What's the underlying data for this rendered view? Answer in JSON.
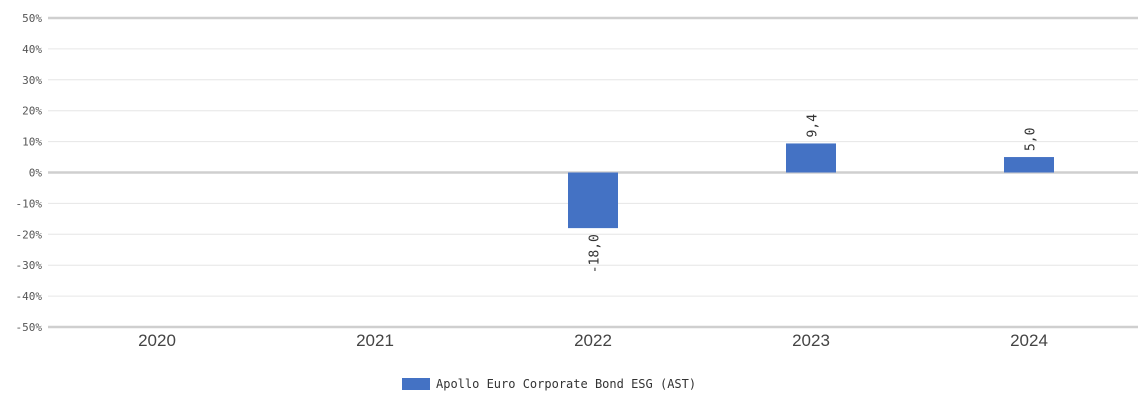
{
  "chart_data": {
    "type": "bar",
    "categories": [
      "2020",
      "2021",
      "2022",
      "2023",
      "2024"
    ],
    "series": [
      {
        "name": "Apollo Euro Corporate Bond ESG (AST)",
        "values": [
          null,
          null,
          -18.0,
          9.4,
          5.0
        ],
        "color": "#4472c4"
      }
    ],
    "data_labels": [
      "",
      "",
      "-18,0",
      "9,4",
      "5,0"
    ],
    "yticks": [
      "50%",
      "40%",
      "30%",
      "20%",
      "10%",
      "0%",
      "-10%",
      "-20%",
      "-30%",
      "-40%",
      "-50%"
    ],
    "ylim": [
      -50,
      50
    ],
    "grid": true,
    "legend_position": "bottom"
  }
}
